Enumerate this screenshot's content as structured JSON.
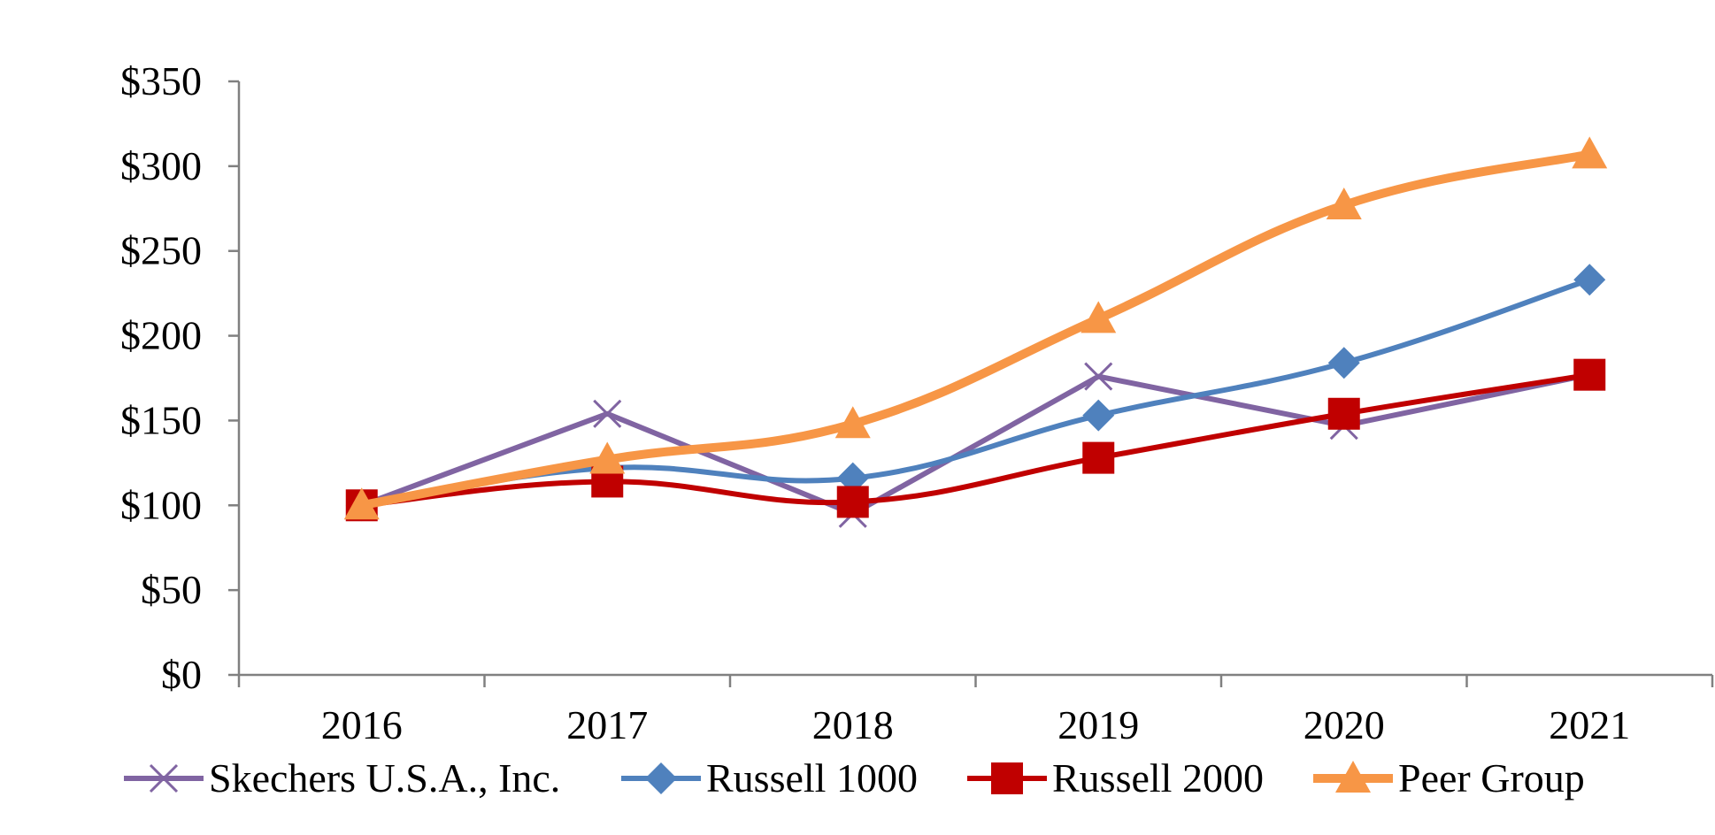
{
  "chart_data": {
    "type": "line",
    "title": "",
    "xlabel": "",
    "ylabel": "",
    "categories": [
      "2016",
      "2017",
      "2018",
      "2019",
      "2020",
      "2021"
    ],
    "ylim": [
      0,
      350
    ],
    "y_ticks": [
      0,
      50,
      100,
      150,
      200,
      250,
      300,
      350
    ],
    "y_tick_labels": [
      "$0",
      "$50",
      "$100",
      "$150",
      "$200",
      "$250",
      "$300",
      "$350"
    ],
    "grid": false,
    "legend_position": "bottom",
    "series": [
      {
        "name": "Skechers U.S.A., Inc.",
        "values": [
          100,
          154,
          95,
          176,
          147,
          177
        ],
        "color": "#8064A2",
        "marker": "x-icon",
        "smooth": false,
        "width": "normal"
      },
      {
        "name": "Russell 1000",
        "values": [
          100,
          122,
          116,
          153,
          184,
          233
        ],
        "color": "#4F81BD",
        "marker": "diamond-icon",
        "smooth": true,
        "width": "normal"
      },
      {
        "name": "Russell 2000",
        "values": [
          100,
          114,
          102,
          128,
          154,
          177
        ],
        "color": "#C00000",
        "marker": "square-icon",
        "smooth": true,
        "width": "normal"
      },
      {
        "name": "Peer Group",
        "values": [
          100,
          127,
          148,
          210,
          277,
          307
        ],
        "color": "#F79646",
        "marker": "triangle-icon",
        "smooth": true,
        "width": "thick"
      }
    ]
  }
}
